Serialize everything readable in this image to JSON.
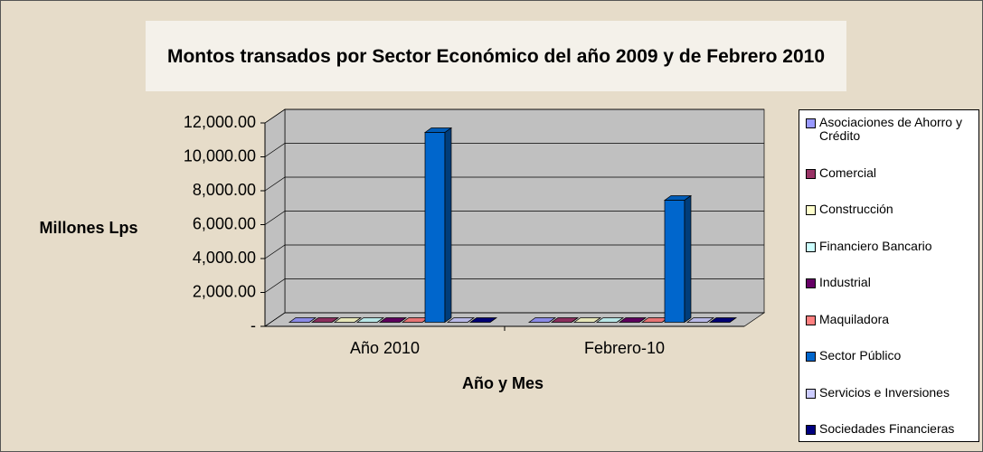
{
  "chart_data": {
    "type": "bar3d",
    "title": "Montos transados por Sector Económico del año 2009 y de Febrero 2010",
    "y_label": "Millones Lps",
    "x_label": "Año y Mes",
    "categories": [
      "Año 2010",
      "Febrero-10"
    ],
    "ylim": [
      0,
      12000
    ],
    "yticks": [
      {
        "value": 0,
        "label": "-"
      },
      {
        "value": 2000,
        "label": "2,000.00"
      },
      {
        "value": 4000,
        "label": "4,000.00"
      },
      {
        "value": 6000,
        "label": "6,000.00"
      },
      {
        "value": 8000,
        "label": "8,000.00"
      },
      {
        "value": 10000,
        "label": "10,000.00"
      },
      {
        "value": 12000,
        "label": "12,000.00"
      }
    ],
    "grid": true,
    "legend": "right",
    "series": [
      {
        "name": "Asociaciones de Ahorro y Crédito",
        "color": "#9999ff",
        "values": [
          0,
          0
        ]
      },
      {
        "name": "Comercial",
        "color": "#993366",
        "values": [
          0,
          0
        ]
      },
      {
        "name": "Construcción",
        "color": "#ffffcc",
        "values": [
          0,
          0
        ]
      },
      {
        "name": "Financiero Bancario",
        "color": "#ccffff",
        "values": [
          0,
          0
        ]
      },
      {
        "name": "Industrial",
        "color": "#660066",
        "values": [
          0,
          0
        ]
      },
      {
        "name": "Maquiladora",
        "color": "#ff8080",
        "values": [
          0,
          0
        ]
      },
      {
        "name": "Sector Público",
        "color": "#0066cc",
        "values": [
          11200,
          7200
        ]
      },
      {
        "name": "Servicios e Inversiones",
        "color": "#ccccff",
        "values": [
          0,
          0
        ]
      },
      {
        "name": "Sociedades Financieras",
        "color": "#000080",
        "values": [
          0,
          0
        ]
      }
    ]
  }
}
